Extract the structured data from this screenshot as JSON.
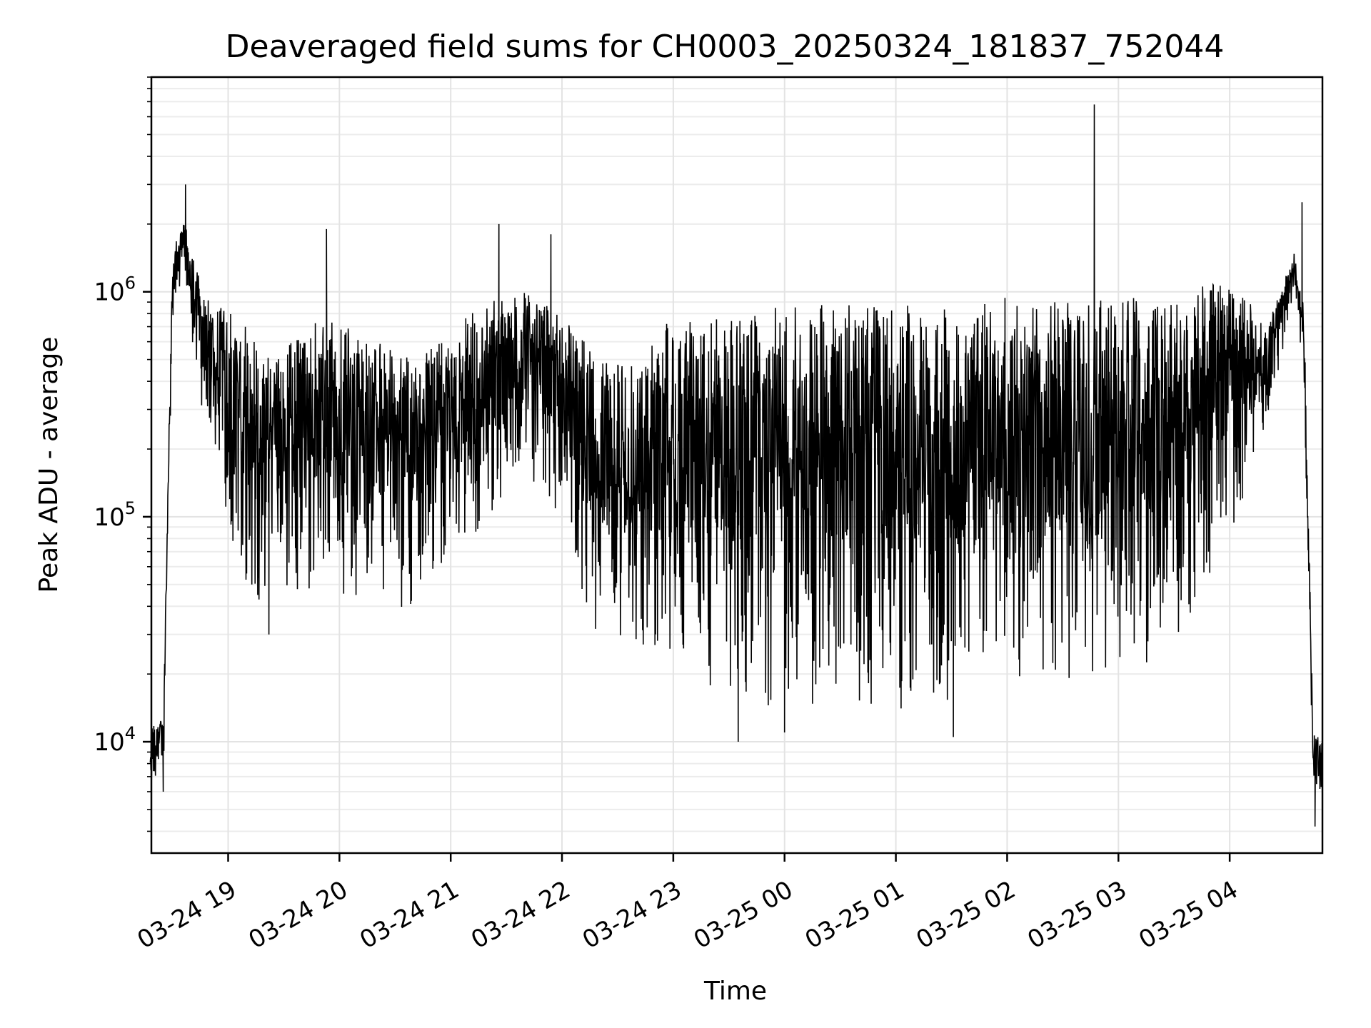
{
  "chart_data": {
    "type": "line",
    "title": "Deaveraged field sums for CH0003_20250324_181837_752044",
    "xlabel": "Time",
    "ylabel": "Peak ADU - average",
    "yscale": "log",
    "ylim": [
      3200,
      9000000
    ],
    "xlim": [
      "2025-03-24 18:18:37",
      "2025-03-25 04:50:00"
    ],
    "grid": true,
    "line_color": "#000000",
    "x_ticks": [
      {
        "time": "2025-03-24 19:00",
        "label": "03-24 19"
      },
      {
        "time": "2025-03-24 20:00",
        "label": "03-24 20"
      },
      {
        "time": "2025-03-24 21:00",
        "label": "03-24 21"
      },
      {
        "time": "2025-03-24 22:00",
        "label": "03-24 22"
      },
      {
        "time": "2025-03-24 23:00",
        "label": "03-24 23"
      },
      {
        "time": "2025-03-25 00:00",
        "label": "03-25 00"
      },
      {
        "time": "2025-03-25 01:00",
        "label": "03-25 01"
      },
      {
        "time": "2025-03-25 02:00",
        "label": "03-25 02"
      },
      {
        "time": "2025-03-25 03:00",
        "label": "03-25 03"
      },
      {
        "time": "2025-03-25 04:00",
        "label": "03-25 04"
      }
    ],
    "y_ticks": [
      {
        "value": 10000,
        "base": "10",
        "exp": "4"
      },
      {
        "value": 100000,
        "base": "10",
        "exp": "5"
      },
      {
        "value": 1000000,
        "base": "10",
        "exp": "6"
      }
    ],
    "series": [
      {
        "envelope": [
          {
            "t": "2025-03-24 18:18",
            "low": 6500,
            "high": 12000
          },
          {
            "t": "2025-03-24 18:25",
            "low": 6000,
            "high": 12500
          },
          {
            "t": "2025-03-24 18:30",
            "low": 700000,
            "high": 1500000
          },
          {
            "t": "2025-03-24 18:36",
            "low": 1200000,
            "high": 2100000
          },
          {
            "t": "2025-03-24 18:45",
            "low": 300000,
            "high": 1100000
          },
          {
            "t": "2025-03-24 18:55",
            "low": 150000,
            "high": 900000
          },
          {
            "t": "2025-03-24 19:05",
            "low": 60000,
            "high": 800000
          },
          {
            "t": "2025-03-24 19:20",
            "low": 35000,
            "high": 500000
          },
          {
            "t": "2025-03-24 19:40",
            "low": 45000,
            "high": 700000
          },
          {
            "t": "2025-03-24 20:00",
            "low": 45000,
            "high": 800000
          },
          {
            "t": "2025-03-24 20:20",
            "low": 40000,
            "high": 600000
          },
          {
            "t": "2025-03-24 20:40",
            "low": 38000,
            "high": 500000
          },
          {
            "t": "2025-03-24 21:00",
            "low": 60000,
            "high": 700000
          },
          {
            "t": "2025-03-24 21:20",
            "low": 100000,
            "high": 900000
          },
          {
            "t": "2025-03-24 21:40",
            "low": 150000,
            "high": 1000000
          },
          {
            "t": "2025-03-24 22:00",
            "low": 100000,
            "high": 800000
          },
          {
            "t": "2025-03-24 22:20",
            "low": 25000,
            "high": 500000
          },
          {
            "t": "2025-03-24 22:40",
            "low": 25000,
            "high": 500000
          },
          {
            "t": "2025-03-24 23:00",
            "low": 20000,
            "high": 800000
          },
          {
            "t": "2025-03-24 23:30",
            "low": 15000,
            "high": 850000
          },
          {
            "t": "2025-03-25 00:00",
            "low": 14000,
            "high": 900000
          },
          {
            "t": "2025-03-25 00:30",
            "low": 13000,
            "high": 900000
          },
          {
            "t": "2025-03-25 01:00",
            "low": 13000,
            "high": 900000
          },
          {
            "t": "2025-03-25 01:30",
            "low": 14000,
            "high": 900000
          },
          {
            "t": "2025-03-25 02:00",
            "low": 15000,
            "high": 950000
          },
          {
            "t": "2025-03-25 02:30",
            "low": 18000,
            "high": 950000
          },
          {
            "t": "2025-03-25 03:00",
            "low": 18000,
            "high": 950000
          },
          {
            "t": "2025-03-25 03:30",
            "low": 25000,
            "high": 1000000
          },
          {
            "t": "2025-03-25 04:00",
            "low": 80000,
            "high": 1200000
          },
          {
            "t": "2025-03-25 04:20",
            "low": 250000,
            "high": 700000
          },
          {
            "t": "2025-03-25 04:35",
            "low": 1000000,
            "high": 1500000
          },
          {
            "t": "2025-03-25 04:40",
            "low": 400000,
            "high": 900000
          },
          {
            "t": "2025-03-25 04:45",
            "low": 6000,
            "high": 11000
          },
          {
            "t": "2025-03-25 04:50",
            "low": 6000,
            "high": 10000
          }
        ],
        "peaks": [
          {
            "t": "2025-03-24 18:37",
            "value": 3000000
          },
          {
            "t": "2025-03-24 19:53",
            "value": 1900000
          },
          {
            "t": "2025-03-24 21:26",
            "value": 2000000
          },
          {
            "t": "2025-03-24 21:54",
            "value": 1800000
          },
          {
            "t": "2025-03-25 02:47",
            "value": 6800000
          },
          {
            "t": "2025-03-25 04:39",
            "value": 2500000
          }
        ],
        "dips": [
          {
            "t": "2025-03-24 18:25",
            "value": 6000
          },
          {
            "t": "2025-03-24 19:22",
            "value": 30000
          },
          {
            "t": "2025-03-24 23:35",
            "value": 10000
          },
          {
            "t": "2025-03-25 00:00",
            "value": 11000
          },
          {
            "t": "2025-03-25 01:31",
            "value": 10500
          },
          {
            "t": "2025-03-25 04:46",
            "value": 4200
          }
        ]
      }
    ]
  }
}
